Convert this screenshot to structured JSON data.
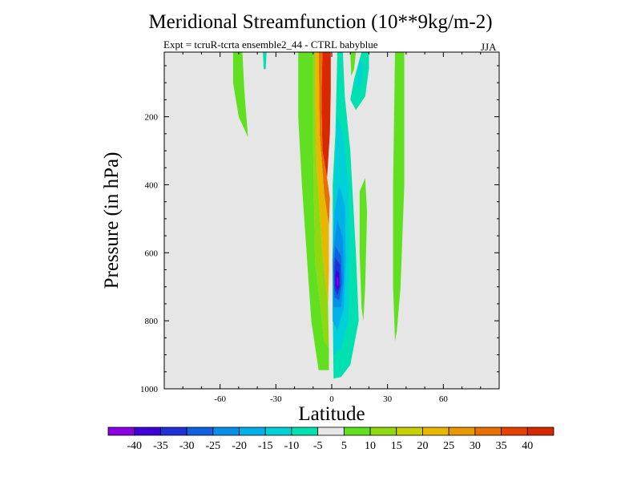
{
  "title": "Meridional Streamfunction (10**9kg/m-2)",
  "subtitle": "Expt = tcruR-tcrta ensemble2_44 - CTRL babyblue",
  "season": "JJA",
  "chart_data": {
    "type": "heatmap",
    "title": "Meridional Streamfunction (10**9kg/m-2)",
    "xlabel": "Latitude",
    "ylabel": "Pressure (in hPa)",
    "xlim": [
      -90,
      90
    ],
    "ylim": [
      1000,
      10
    ],
    "x_ticks": [
      "-60",
      "-30",
      "0",
      "30",
      "60"
    ],
    "x_tick_values": [
      -60,
      -30,
      0,
      30,
      60
    ],
    "y_ticks": [
      "200",
      "400",
      "600",
      "800",
      "1000"
    ],
    "y_tick_values": [
      200,
      400,
      600,
      800,
      1000
    ],
    "background": "#e6e6e6",
    "colorbar": {
      "labels": [
        "-40",
        "-35",
        "-30",
        "-25",
        "-20",
        "-15",
        "-10",
        "-5",
        "5",
        "10",
        "15",
        "20",
        "25",
        "30",
        "35",
        "40"
      ],
      "colors": [
        "#8b00e0",
        "#4000d8",
        "#2030d8",
        "#1060e0",
        "#0890e8",
        "#00b0e8",
        "#00d0d8",
        "#00e0b0",
        "#e6e6e6",
        "#60e020",
        "#90d810",
        "#c8d000",
        "#e8b800",
        "#e89800",
        "#e87000",
        "#e84000",
        "#d82800"
      ]
    },
    "regions": [
      {
        "name": "positive core",
        "color": "#d82800",
        "points": [
          [
            -5,
            10
          ],
          [
            -0.5,
            10
          ],
          [
            -0.5,
            120
          ],
          [
            -1,
            250
          ],
          [
            -2.5,
            380
          ],
          [
            -5,
            300
          ],
          [
            -5.5,
            150
          ]
        ]
      },
      {
        "name": "positive shell",
        "color": "#e87000",
        "points": [
          [
            -7,
            10
          ],
          [
            -5,
            10
          ],
          [
            -5.5,
            150
          ],
          [
            -5,
            300
          ],
          [
            -2.5,
            380
          ],
          [
            -1,
            440
          ],
          [
            -1.5,
            520
          ],
          [
            -4,
            430
          ],
          [
            -6.5,
            250
          ]
        ]
      },
      {
        "name": "positive 25",
        "color": "#e8b800",
        "points": [
          [
            -9,
            10
          ],
          [
            -7,
            10
          ],
          [
            -6.5,
            250
          ],
          [
            -4,
            430
          ],
          [
            -1.5,
            520
          ],
          [
            -1.5,
            660
          ],
          [
            -2,
            750
          ],
          [
            -5,
            600
          ],
          [
            -8,
            350
          ],
          [
            -9,
            150
          ]
        ]
      },
      {
        "name": "positive 15",
        "color": "#90d810",
        "points": [
          [
            -10,
            10
          ],
          [
            -9,
            10
          ],
          [
            -9,
            150
          ],
          [
            -8,
            350
          ],
          [
            -5,
            600
          ],
          [
            -2,
            750
          ],
          [
            -1.5,
            880
          ],
          [
            -4,
            860
          ],
          [
            -9,
            620
          ],
          [
            -10,
            300
          ]
        ]
      },
      {
        "name": "positive 5 band",
        "color": "#60e020",
        "points": [
          [
            -18,
            10
          ],
          [
            -10,
            10
          ],
          [
            -10,
            300
          ],
          [
            -9,
            620
          ],
          [
            -4,
            860
          ],
          [
            -1.5,
            880
          ],
          [
            -1.5,
            945
          ],
          [
            -7,
            945
          ],
          [
            -11,
            800
          ],
          [
            -16,
            400
          ],
          [
            -18,
            200
          ]
        ]
      },
      {
        "name": "negative 5",
        "color": "#00e0b0",
        "points": [
          [
            3,
            10
          ],
          [
            6,
            10
          ],
          [
            7,
            140
          ],
          [
            10,
            300
          ],
          [
            13,
            600
          ],
          [
            14.5,
            800
          ],
          [
            10,
            930
          ],
          [
            5,
            965
          ],
          [
            1,
            970
          ],
          [
            0.5,
            760
          ],
          [
            0.5,
            600
          ],
          [
            0.5,
            400
          ],
          [
            2,
            250
          ]
        ]
      },
      {
        "name": "negative 10",
        "color": "#00d0d8",
        "points": [
          [
            3,
            200
          ],
          [
            6,
            250
          ],
          [
            9,
            400
          ],
          [
            9.5,
            600
          ],
          [
            9,
            800
          ],
          [
            5,
            880
          ],
          [
            1,
            900
          ],
          [
            0.5,
            600
          ],
          [
            1.5,
            400
          ]
        ]
      },
      {
        "name": "negative 15",
        "color": "#00b0e8",
        "points": [
          [
            4,
            400
          ],
          [
            7,
            460
          ],
          [
            7.5,
            620
          ],
          [
            6.5,
            760
          ],
          [
            3,
            830
          ],
          [
            0.5,
            800
          ],
          [
            0.5,
            600
          ],
          [
            1.5,
            480
          ]
        ]
      },
      {
        "name": "negative 20",
        "color": "#0890e8",
        "points": [
          [
            3,
            500
          ],
          [
            6,
            560
          ],
          [
            6.5,
            680
          ],
          [
            5,
            760
          ],
          [
            1,
            760
          ],
          [
            0.5,
            620
          ]
        ]
      },
      {
        "name": "negative 25",
        "color": "#1060e0",
        "points": [
          [
            2,
            580
          ],
          [
            5,
            610
          ],
          [
            5.5,
            690
          ],
          [
            4,
            740
          ],
          [
            1.5,
            730
          ],
          [
            1,
            640
          ]
        ]
      },
      {
        "name": "negative 30",
        "color": "#2030d8",
        "points": [
          [
            2,
            615
          ],
          [
            4.5,
            635
          ],
          [
            4.5,
            700
          ],
          [
            3,
            725
          ],
          [
            1.5,
            705
          ],
          [
            1.5,
            650
          ]
        ]
      },
      {
        "name": "negative 35",
        "color": "#4000d8",
        "points": [
          [
            2.5,
            650
          ],
          [
            4,
            660
          ],
          [
            4,
            700
          ],
          [
            3,
            710
          ],
          [
            2,
            695
          ],
          [
            2,
            665
          ]
        ]
      },
      {
        "name": "negative 40",
        "color": "#8b00e0",
        "points": [
          [
            2.8,
            670
          ],
          [
            3.6,
            675
          ],
          [
            3.6,
            695
          ],
          [
            3,
            700
          ],
          [
            2.6,
            690
          ]
        ]
      },
      {
        "name": "cyan upper cell",
        "color": "#00e0b0",
        "points": [
          [
            16,
            10
          ],
          [
            20,
            10
          ],
          [
            20,
            60
          ],
          [
            18,
            140
          ],
          [
            13,
            180
          ],
          [
            10,
            150
          ],
          [
            12,
            90
          ]
        ]
      },
      {
        "name": "cyan upper core",
        "color": "#00d0d8",
        "points": [
          [
            15,
            30
          ],
          [
            17,
            50
          ],
          [
            16,
            100
          ],
          [
            13,
            120
          ]
        ]
      },
      {
        "name": "green upper strip",
        "color": "#60e020",
        "points": [
          [
            10,
            10
          ],
          [
            13,
            10
          ],
          [
            12,
            60
          ],
          [
            10.5,
            80
          ]
        ]
      },
      {
        "name": "green strip 20N",
        "color": "#60e020",
        "points": [
          [
            15,
            420
          ],
          [
            18,
            380
          ],
          [
            19,
            480
          ],
          [
            18,
            700
          ],
          [
            17,
            800
          ],
          [
            16,
            760
          ],
          [
            15,
            600
          ]
        ]
      },
      {
        "name": "green strip 40N",
        "color": "#60e020",
        "points": [
          [
            34,
            10
          ],
          [
            39,
            10
          ],
          [
            39,
            400
          ],
          [
            37,
            700
          ],
          [
            35,
            830
          ],
          [
            34,
            860
          ],
          [
            33,
            700
          ],
          [
            33,
            400
          ]
        ]
      },
      {
        "name": "green strip 50S",
        "color": "#60e020",
        "points": [
          [
            -53,
            10
          ],
          [
            -48,
            10
          ],
          [
            -47,
            120
          ],
          [
            -45,
            260
          ],
          [
            -50,
            200
          ],
          [
            -53,
            100
          ]
        ]
      },
      {
        "name": "cyan sliver 37S",
        "color": "#00e0b0",
        "points": [
          [
            -37,
            10
          ],
          [
            -35,
            10
          ],
          [
            -35.5,
            60
          ],
          [
            -36.5,
            60
          ]
        ]
      }
    ]
  }
}
